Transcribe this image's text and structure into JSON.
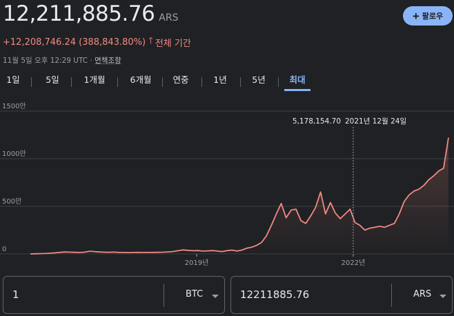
{
  "header": {
    "price": "12,211,885.76",
    "currency": "ARS",
    "change_text": "+12,208,746.24 (388,843.80%)",
    "change_period": "전체 기간",
    "timestamp": "11월 5일 오후 12:29 UTC · ",
    "disclaimer": "면책조항"
  },
  "follow_button": {
    "label": "팔로우"
  },
  "tabs": [
    {
      "label": "1일"
    },
    {
      "label": "5일"
    },
    {
      "label": "1개월"
    },
    {
      "label": "6개월"
    },
    {
      "label": "연중"
    },
    {
      "label": "1년"
    },
    {
      "label": "5년"
    },
    {
      "label": "최대",
      "active": true
    }
  ],
  "colors": {
    "line": "#f28b82",
    "accent": "#8ab4f8",
    "background": "#202124",
    "grid": "#3c4043"
  },
  "chart_data": {
    "type": "line",
    "ylim": [
      0,
      15000000
    ],
    "y_ticks": [
      {
        "value": 0,
        "label": "0"
      },
      {
        "value": 5000000,
        "label": "500만"
      },
      {
        "value": 10000000,
        "label": "1000만"
      },
      {
        "value": 15000000,
        "label": "1500만"
      }
    ],
    "x_ticks": [
      {
        "label": "2019년"
      },
      {
        "label": "2022년"
      }
    ],
    "tooltip": {
      "value": "5,178,154.70",
      "date": "2021년 12월 24일"
    },
    "series": [
      {
        "values": [
          3100,
          15000,
          30000,
          45000,
          70000,
          110000,
          160000,
          200000,
          180000,
          170000,
          150000,
          180000,
          280000,
          250000,
          200000,
          180000,
          170000,
          190000,
          160000,
          150000,
          140000,
          150000,
          160000,
          150000,
          150000,
          160000,
          170000,
          180000,
          210000,
          250000,
          330000,
          420000,
          380000,
          330000,
          350000,
          300000,
          320000,
          350000,
          300000,
          250000,
          350000,
          400000,
          300000,
          400000,
          600000,
          700000,
          900000,
          1200000,
          1900000,
          3000000,
          4200000,
          5300000,
          3800000,
          4600000,
          4700000,
          3500000,
          3200000,
          4000000,
          4900000,
          6500000,
          4200000,
          5400000,
          4300000,
          3700000,
          4200000,
          4700000,
          3300000,
          3000000,
          2500000,
          2700000,
          2800000,
          2900000,
          2800000,
          3000000,
          3200000,
          4200000,
          5500000,
          6200000,
          6600000,
          6800000,
          7200000,
          7800000,
          8200000,
          8700000,
          9000000,
          12211885.76
        ]
      }
    ]
  },
  "converter": {
    "from": {
      "value": "1",
      "unit": "BTC"
    },
    "to": {
      "value": "12211885.76",
      "unit": "ARS"
    }
  }
}
